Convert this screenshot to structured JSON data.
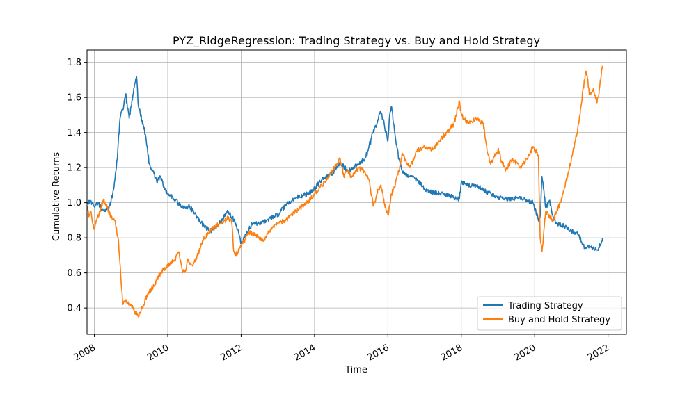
{
  "chart_data": {
    "type": "line",
    "title": "PYZ_RidgeRegression: Trading Strategy vs. Buy and Hold Strategy",
    "xlabel": "Time",
    "ylabel": "Cumulative Returns",
    "xlim": [
      2007.8,
      2022.5
    ],
    "ylim": [
      0.25,
      1.87
    ],
    "x_ticks": [
      2008,
      2010,
      2012,
      2014,
      2016,
      2018,
      2020,
      2022
    ],
    "x_tick_labels": [
      "2008",
      "2010",
      "2012",
      "2014",
      "2016",
      "2018",
      "2020",
      "2022"
    ],
    "y_ticks": [
      0.4,
      0.6,
      0.8,
      1.0,
      1.2,
      1.4,
      1.6,
      1.8
    ],
    "y_tick_labels": [
      "0.4",
      "0.6",
      "0.8",
      "1.0",
      "1.2",
      "1.4",
      "1.6",
      "1.8"
    ],
    "grid": true,
    "legend_position": "lower-right",
    "series": [
      {
        "name": "Trading Strategy",
        "color": "#1f77b4",
        "x": [
          2007.8,
          2007.9,
          2008.0,
          2008.1,
          2008.2,
          2008.3,
          2008.4,
          2008.5,
          2008.6,
          2008.7,
          2008.8,
          2008.85,
          2008.95,
          2009.0,
          2009.1,
          2009.15,
          2009.2,
          2009.3,
          2009.4,
          2009.5,
          2009.6,
          2009.7,
          2009.8,
          2009.9,
          2010.0,
          2010.2,
          2010.4,
          2010.6,
          2010.8,
          2011.0,
          2011.2,
          2011.4,
          2011.6,
          2011.65,
          2011.8,
          2011.9,
          2012.0,
          2012.1,
          2012.3,
          2012.5,
          2012.7,
          2013.0,
          2013.2,
          2013.5,
          2013.8,
          2014.0,
          2014.2,
          2014.5,
          2014.7,
          2014.9,
          2015.0,
          2015.2,
          2015.4,
          2015.6,
          2015.7,
          2015.8,
          2015.9,
          2016.0,
          2016.05,
          2016.1,
          2016.2,
          2016.3,
          2016.4,
          2016.6,
          2016.8,
          2017.0,
          2017.2,
          2017.5,
          2017.8,
          2017.95,
          2018.0,
          2018.2,
          2018.5,
          2018.7,
          2018.9,
          2019.0,
          2019.3,
          2019.6,
          2019.8,
          2019.95,
          2020.1,
          2020.15,
          2020.2,
          2020.3,
          2020.4,
          2020.5,
          2020.6,
          2020.8,
          2021.0,
          2021.2,
          2021.3,
          2021.4,
          2021.5,
          2021.6,
          2021.7,
          2021.8,
          2021.85
        ],
        "y": [
          1.0,
          1.01,
          0.98,
          1.0,
          0.96,
          0.95,
          0.97,
          1.05,
          1.2,
          1.48,
          1.55,
          1.62,
          1.48,
          1.55,
          1.68,
          1.72,
          1.55,
          1.47,
          1.38,
          1.22,
          1.18,
          1.12,
          1.15,
          1.09,
          1.05,
          1.02,
          0.97,
          0.98,
          0.92,
          0.86,
          0.84,
          0.88,
          0.94,
          0.95,
          0.9,
          0.85,
          0.77,
          0.8,
          0.88,
          0.88,
          0.9,
          0.93,
          0.98,
          1.03,
          1.05,
          1.08,
          1.13,
          1.17,
          1.23,
          1.18,
          1.19,
          1.22,
          1.26,
          1.4,
          1.45,
          1.52,
          1.45,
          1.35,
          1.5,
          1.55,
          1.38,
          1.25,
          1.17,
          1.15,
          1.13,
          1.08,
          1.06,
          1.05,
          1.03,
          1.02,
          1.12,
          1.1,
          1.09,
          1.06,
          1.04,
          1.03,
          1.02,
          1.03,
          1.01,
          1.0,
          0.9,
          0.92,
          1.15,
          0.97,
          1.01,
          0.92,
          0.88,
          0.87,
          0.84,
          0.82,
          0.76,
          0.74,
          0.75,
          0.74,
          0.73,
          0.76,
          0.8
        ]
      },
      {
        "name": "Buy and Hold Strategy",
        "color": "#ff7f0e",
        "x": [
          2007.8,
          2007.85,
          2007.9,
          2008.0,
          2008.05,
          2008.15,
          2008.25,
          2008.35,
          2008.45,
          2008.55,
          2008.65,
          2008.72,
          2008.78,
          2008.83,
          2008.9,
          2009.0,
          2009.1,
          2009.2,
          2009.3,
          2009.45,
          2009.6,
          2009.8,
          2010.0,
          2010.2,
          2010.3,
          2010.4,
          2010.5,
          2010.55,
          2010.6,
          2010.7,
          2010.8,
          2010.9,
          2011.0,
          2011.2,
          2011.4,
          2011.6,
          2011.65,
          2011.75,
          2011.8,
          2011.85,
          2012.0,
          2012.2,
          2012.4,
          2012.6,
          2012.8,
          2013.0,
          2013.2,
          2013.5,
          2013.8,
          2014.0,
          2014.2,
          2014.4,
          2014.6,
          2014.7,
          2014.8,
          2014.9,
          2015.0,
          2015.2,
          2015.35,
          2015.5,
          2015.6,
          2015.7,
          2015.8,
          2015.9,
          2016.0,
          2016.1,
          2016.2,
          2016.3,
          2016.4,
          2016.5,
          2016.6,
          2016.8,
          2017.0,
          2017.2,
          2017.4,
          2017.6,
          2017.8,
          2017.95,
          2018.0,
          2018.2,
          2018.4,
          2018.6,
          2018.7,
          2018.8,
          2019.0,
          2019.2,
          2019.4,
          2019.6,
          2019.8,
          2019.95,
          2020.1,
          2020.15,
          2020.2,
          2020.3,
          2020.5,
          2020.7,
          2020.9,
          2021.0,
          2021.1,
          2021.2,
          2021.3,
          2021.4,
          2021.5,
          2021.6,
          2021.7,
          2021.8,
          2021.85
        ],
        "y": [
          0.98,
          0.92,
          0.95,
          0.85,
          0.9,
          0.95,
          1.02,
          0.97,
          0.92,
          0.9,
          0.8,
          0.58,
          0.42,
          0.44,
          0.43,
          0.42,
          0.38,
          0.35,
          0.4,
          0.48,
          0.52,
          0.6,
          0.64,
          0.68,
          0.72,
          0.6,
          0.62,
          0.68,
          0.65,
          0.65,
          0.7,
          0.75,
          0.8,
          0.85,
          0.88,
          0.9,
          0.92,
          0.88,
          0.72,
          0.7,
          0.75,
          0.83,
          0.82,
          0.78,
          0.85,
          0.88,
          0.9,
          0.95,
          1.0,
          1.05,
          1.1,
          1.15,
          1.22,
          1.25,
          1.15,
          1.18,
          1.15,
          1.2,
          1.18,
          1.12,
          0.98,
          1.05,
          1.1,
          1.0,
          0.93,
          1.05,
          1.1,
          1.18,
          1.28,
          1.23,
          1.2,
          1.3,
          1.32,
          1.3,
          1.35,
          1.4,
          1.45,
          1.58,
          1.5,
          1.45,
          1.48,
          1.45,
          1.3,
          1.22,
          1.3,
          1.18,
          1.25,
          1.2,
          1.25,
          1.32,
          1.27,
          0.8,
          0.72,
          0.95,
          0.9,
          1.0,
          1.15,
          1.25,
          1.35,
          1.45,
          1.62,
          1.75,
          1.62,
          1.65,
          1.57,
          1.7,
          1.78
        ]
      }
    ]
  }
}
